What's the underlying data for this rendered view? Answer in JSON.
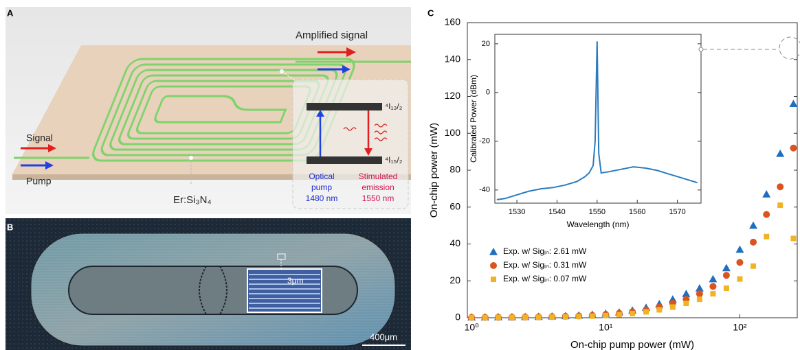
{
  "panel_a": {
    "letter": "A",
    "amplified_signal": "Amplified signal",
    "signal": "Signal",
    "pump": "Pump",
    "material": "Er:Si₃N₄",
    "upper_level": "⁴I₁₃/₂",
    "lower_level": "⁴I₁₅/₂",
    "optical_pump": [
      "Optical",
      "pump",
      "1480 nm"
    ],
    "stimulated_emission": [
      "Stimulated",
      "emission",
      "1550 nm"
    ]
  },
  "panel_b": {
    "letter": "B",
    "gap_label": "3μm",
    "scale_bar": "400μm"
  },
  "panel_c": {
    "letter": "C"
  },
  "chart_data": [
    {
      "type": "scatter",
      "xlabel": "On-chip pump power (mW)",
      "ylabel": "On-chip power (mW)",
      "log_x": true,
      "x": [
        1,
        1.26,
        1.58,
        2,
        2.51,
        3.16,
        3.98,
        5.01,
        6.31,
        7.94,
        10,
        12.6,
        15.8,
        20,
        25.1,
        31.6,
        39.8,
        50.1,
        63.1,
        79.4,
        100,
        126,
        158,
        200,
        251
      ],
      "xlim": [
        0.93,
        268
      ],
      "xticks": [
        {
          "value": 1,
          "label": "10⁰"
        },
        {
          "value": 10,
          "label": "10¹"
        },
        {
          "value": 100,
          "label": "10²"
        }
      ],
      "ylim": [
        0,
        160
      ],
      "yticks": [
        0,
        20,
        40,
        60,
        80,
        100,
        120,
        140,
        160
      ],
      "series": [
        {
          "name": "Exp. w/ Sigᵢₙ: 2.61 mW",
          "color": "#1f6fc0",
          "marker": "triangle",
          "values": [
            0.3,
            0.3,
            0.4,
            0.4,
            0.5,
            0.6,
            0.8,
            1,
            1.3,
            1.7,
            2.3,
            3,
            4,
            5.5,
            7.5,
            10,
            13,
            16,
            21,
            27,
            37,
            50,
            67,
            89,
            116
          ]
        },
        {
          "name": "Exp. w/ Sigᵢₙ: 0.31 mW",
          "color": "#d9541e",
          "marker": "circle",
          "values": [
            0.2,
            0.2,
            0.3,
            0.3,
            0.4,
            0.5,
            0.6,
            0.8,
            1,
            1.3,
            1.8,
            2.4,
            3.2,
            4.3,
            5.8,
            7.8,
            10,
            13,
            17,
            23,
            30,
            41,
            56,
            71,
            92
          ]
        },
        {
          "name": "Exp. w/ Sigᵢₙ: 0.07 mW",
          "color": "#f0b323",
          "marker": "square",
          "values": [
            0.1,
            0.1,
            0.2,
            0.2,
            0.3,
            0.3,
            0.4,
            0.5,
            0.7,
            0.9,
            1.2,
            1.7,
            2.3,
            3.2,
            4.3,
            5.8,
            7.8,
            10,
            13,
            16,
            21,
            28,
            44,
            61,
            43
          ]
        }
      ],
      "legend": "lower left"
    },
    {
      "type": "line",
      "xlabel": "Wavelength (nm)",
      "ylabel": "Calibrated Power (dBm)",
      "color": "#2a7bbf",
      "x": [
        1525,
        1527,
        1530,
        1533,
        1536,
        1539,
        1542,
        1545,
        1547,
        1548,
        1549,
        1549.5,
        1550,
        1550.4,
        1551,
        1553,
        1556,
        1559,
        1562,
        1565,
        1568,
        1571,
        1575
      ],
      "values": [
        -44,
        -43.5,
        -42,
        -40.5,
        -39.5,
        -39,
        -38,
        -36.5,
        -34.5,
        -33,
        -30,
        -20,
        21,
        -25,
        -33,
        -32.5,
        -31.5,
        -30.5,
        -31,
        -32,
        -33.5,
        -35,
        -37
      ],
      "xlim": [
        1524.5,
        1575.9
      ],
      "xticks": [
        1530,
        1540,
        1550,
        1560,
        1570
      ],
      "ylim": [
        -45.4,
        23.9
      ],
      "yticks": [
        -40,
        -20,
        0,
        20
      ]
    }
  ]
}
